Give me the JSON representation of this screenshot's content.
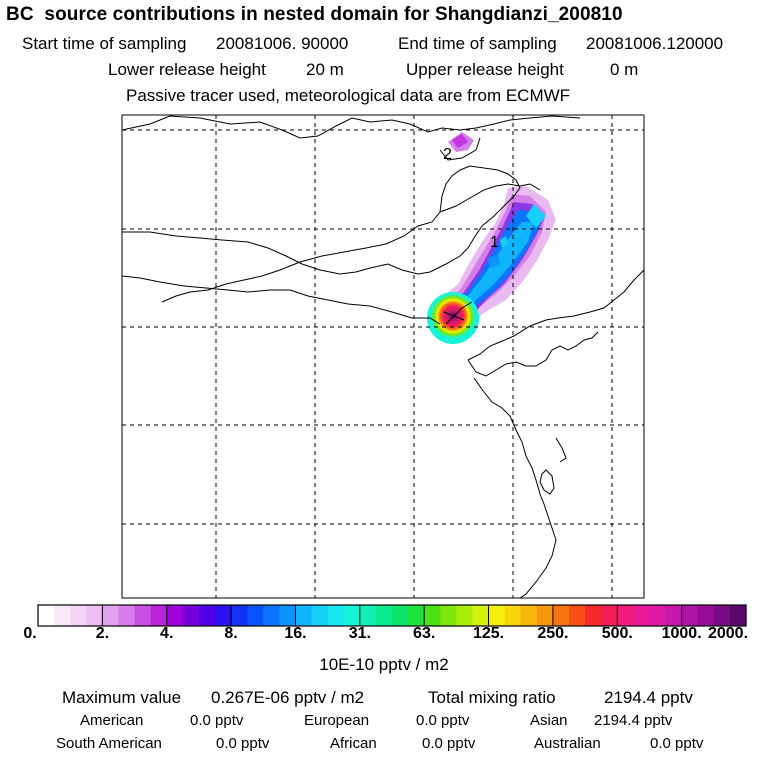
{
  "header": {
    "title": "BC  source contributions in nested domain for Shangdianzi_200810",
    "start_label": "Start time of sampling",
    "start_value": "20081006. 90000",
    "end_label": "End time of sampling",
    "end_value": "20081006.120000",
    "lower_label": "Lower release height",
    "lower_value": "20 m",
    "upper_label": "Upper release height",
    "upper_value": "0 m",
    "note": "Passive tracer used, meteorological data are from ECMWF"
  },
  "map": {
    "markers": [
      "1",
      "2"
    ],
    "colors": {
      "coastline": "#000000",
      "grid": "#000000"
    }
  },
  "colorbar": {
    "tick_labels": [
      "0.",
      "2.",
      "4.",
      "8.",
      "16.",
      "31.",
      "63.",
      "125.",
      "250.",
      "500.",
      "1000.",
      "2000."
    ],
    "colors": [
      "#ffffff",
      "#f8e8fa",
      "#f2d6f6",
      "#ebbff2",
      "#e2a3ee",
      "#d67ee8",
      "#c94ee2",
      "#bb22dc",
      "#a100d8",
      "#7600dc",
      "#4e00e6",
      "#2a12f0",
      "#1232f6",
      "#0a52fa",
      "#0a74fc",
      "#0a94fc",
      "#10b4fc",
      "#16d0fa",
      "#18e8f0",
      "#16f4d8",
      "#10f0b4",
      "#0cea90",
      "#0ae46a",
      "#20e23c",
      "#4ae214",
      "#7ee60a",
      "#aaec0a",
      "#d4f20a",
      "#f4f00a",
      "#f8d40a",
      "#f8b60a",
      "#f8960c",
      "#f87410",
      "#f84e16",
      "#f62a2e",
      "#f41c56",
      "#f21a7c",
      "#ea1a96",
      "#dc1aa6",
      "#c818ac",
      "#b012a6",
      "#960c98",
      "#780a82",
      "#5a066a"
    ],
    "unit": "10E-10 pptv / m2"
  },
  "stats": {
    "max_label": "Maximum value",
    "max_value": "0.267E-06 pptv / m2",
    "total_label": "Total mixing ratio",
    "total_value": "2194.4 pptv",
    "regions": [
      {
        "name": "American",
        "value": "0.0 pptv"
      },
      {
        "name": "European",
        "value": "0.0 pptv"
      },
      {
        "name": "Asian",
        "value": "2194.4 pptv"
      },
      {
        "name": "South American",
        "value": "0.0 pptv"
      },
      {
        "name": "African",
        "value": "0.0 pptv"
      },
      {
        "name": "Australian",
        "value": "0.0 pptv"
      }
    ]
  }
}
